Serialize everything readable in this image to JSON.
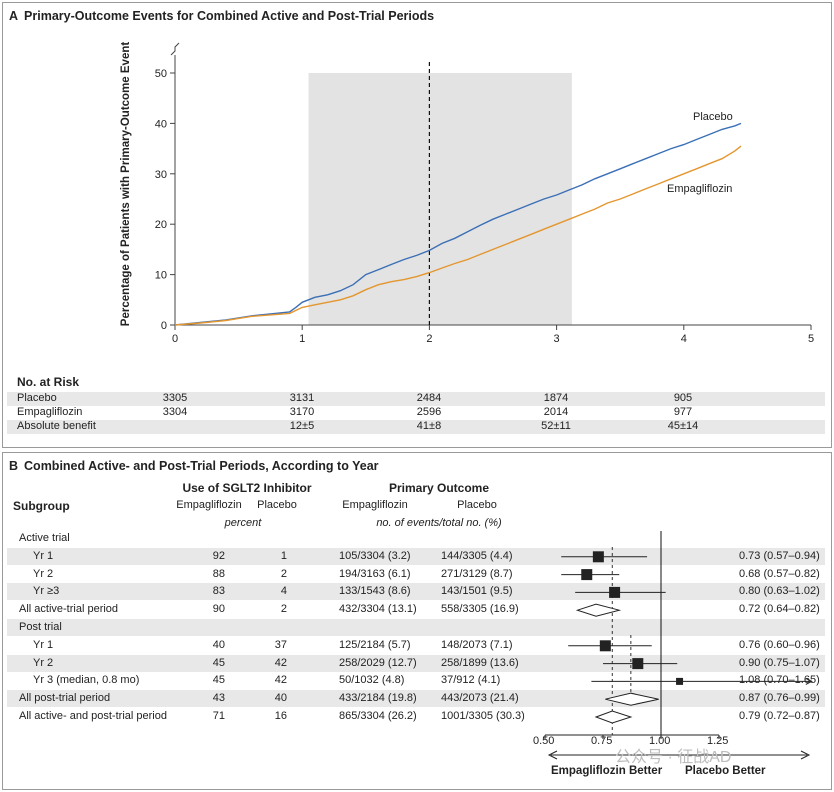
{
  "panel_a": {
    "letter": "A",
    "title": "Primary-Outcome Events for Combined Active and Post-Trial Periods",
    "risk_title": "No. at Risk",
    "risk_rows": [
      {
        "label": "Placebo",
        "values": [
          "3305",
          "3131",
          "2484",
          "1874",
          "905"
        ],
        "shaded": true
      },
      {
        "label": "Empagliflozin",
        "values": [
          "3304",
          "3170",
          "2596",
          "2014",
          "977"
        ],
        "shaded": false
      },
      {
        "label": "Absolute benefit",
        "values": [
          "",
          "12±5",
          "41±8",
          "52±11",
          "45±14"
        ],
        "shaded": true
      }
    ]
  },
  "panel_b": {
    "letter": "B",
    "title": "Combined Active- and Post-Trial Periods, According to Year",
    "head_subgroup": "Subgroup",
    "head_sglt2": "Use of SGLT2 Inhibitor",
    "head_outcome": "Primary Outcome",
    "head_empa": "Empagliflozin",
    "head_placebo": "Placebo",
    "head_percent": "percent",
    "head_events": "no. of events/total no. (%)",
    "rows": [
      {
        "label": "Active trial",
        "indent": false,
        "shaded": false,
        "empa_pct": "",
        "plac_pct": "",
        "empa_ev": "",
        "plac_ev": "",
        "ci_text": "",
        "hr": null,
        "lo": null,
        "hi": null,
        "shape": "none"
      },
      {
        "label": "Yr 1",
        "indent": true,
        "shaded": true,
        "empa_pct": "92",
        "plac_pct": "1",
        "empa_ev": "105/3304 (3.2)",
        "plac_ev": "144/3305 (4.4)",
        "ci_text": "0.73 (0.57–0.94)",
        "hr": 0.73,
        "lo": 0.57,
        "hi": 0.94,
        "shape": "square"
      },
      {
        "label": "Yr 2",
        "indent": true,
        "shaded": false,
        "empa_pct": "88",
        "plac_pct": "2",
        "empa_ev": "194/3163 (6.1)",
        "plac_ev": "271/3129 (8.7)",
        "ci_text": "0.68 (0.57–0.82)",
        "hr": 0.68,
        "lo": 0.57,
        "hi": 0.82,
        "shape": "square"
      },
      {
        "label": "Yr ≥3",
        "indent": true,
        "shaded": true,
        "empa_pct": "83",
        "plac_pct": "4",
        "empa_ev": "133/1543 (8.6)",
        "plac_ev": "143/1501 (9.5)",
        "ci_text": "0.80 (0.63–1.02)",
        "hr": 0.8,
        "lo": 0.63,
        "hi": 1.02,
        "shape": "square"
      },
      {
        "label": "All active-trial period",
        "indent": false,
        "shaded": false,
        "empa_pct": "90",
        "plac_pct": "2",
        "empa_ev": "432/3304 (13.1)",
        "plac_ev": "558/3305 (16.9)",
        "ci_text": "0.72 (0.64–0.82)",
        "hr": 0.72,
        "lo": 0.64,
        "hi": 0.82,
        "shape": "diamond"
      },
      {
        "label": "Post trial",
        "indent": false,
        "shaded": true,
        "empa_pct": "",
        "plac_pct": "",
        "empa_ev": "",
        "plac_ev": "",
        "ci_text": "",
        "hr": null,
        "lo": null,
        "hi": null,
        "shape": "none"
      },
      {
        "label": "Yr 1",
        "indent": true,
        "shaded": false,
        "empa_pct": "40",
        "plac_pct": "37",
        "empa_ev": "125/2184 (5.7)",
        "plac_ev": "148/2073 (7.1)",
        "ci_text": "0.76 (0.60–0.96)",
        "hr": 0.76,
        "lo": 0.6,
        "hi": 0.96,
        "shape": "square"
      },
      {
        "label": "Yr 2",
        "indent": true,
        "shaded": true,
        "empa_pct": "45",
        "plac_pct": "42",
        "empa_ev": "258/2029 (12.7)",
        "plac_ev": "258/1899 (13.6)",
        "ci_text": "0.90 (0.75–1.07)",
        "hr": 0.9,
        "lo": 0.75,
        "hi": 1.07,
        "shape": "square"
      },
      {
        "label": "Yr 3 (median, 0.8 mo)",
        "indent": true,
        "shaded": false,
        "empa_pct": "45",
        "plac_pct": "42",
        "empa_ev": "50/1032 (4.8)",
        "plac_ev": "37/912 (4.1)",
        "ci_text": "1.08 (0.70–1.65)",
        "hr": 1.08,
        "lo": 0.7,
        "hi": 1.65,
        "shape": "square-small"
      },
      {
        "label": "All post-trial period",
        "indent": false,
        "shaded": true,
        "empa_pct": "43",
        "plac_pct": "40",
        "empa_ev": "433/2184 (19.8)",
        "plac_ev": "443/2073 (21.4)",
        "ci_text": "0.87 (0.76–0.99)",
        "hr": 0.87,
        "lo": 0.76,
        "hi": 0.99,
        "shape": "diamond"
      },
      {
        "label": "All active- and post-trial period",
        "indent": false,
        "shaded": false,
        "empa_pct": "71",
        "plac_pct": "16",
        "empa_ev": "865/3304 (26.2)",
        "plac_ev": "1001/3305 (30.3)",
        "ci_text": "0.79 (0.72–0.87)",
        "hr": 0.79,
        "lo": 0.72,
        "hi": 0.87,
        "shape": "diamond"
      }
    ],
    "forest_ticks": [
      "0.50",
      "0.75",
      "1.00",
      "1.25"
    ],
    "left_better": "Empagliflozin Better",
    "right_better": "Placebo Better",
    "watermark": "公众号 · 征战AD"
  },
  "chart_data": [
    {
      "type": "line",
      "title": "Primary-Outcome Events for Combined Active and Post-Trial Periods",
      "ylabel": "Percentage of Patients with Primary-Outcome Event",
      "xlabel": "",
      "xlim": [
        0,
        5
      ],
      "ylim": [
        0,
        50
      ],
      "xticks": [
        "0",
        "1",
        "2",
        "3",
        "4",
        "5"
      ],
      "yticks": [
        "0",
        "10",
        "20",
        "30",
        "40",
        "50"
      ],
      "shaded_x_range": [
        1.05,
        3.12
      ],
      "reference_x": 2.0,
      "colors": {
        "Placebo": "#3b6fb6",
        "Empagliflozin": "#e4962f"
      },
      "series": [
        {
          "name": "Placebo",
          "x": [
            0,
            0.2,
            0.4,
            0.5,
            0.6,
            0.75,
            0.9,
            0.95,
            1.0,
            1.1,
            1.2,
            1.3,
            1.4,
            1.5,
            1.6,
            1.7,
            1.8,
            1.9,
            2.0,
            2.1,
            2.2,
            2.3,
            2.4,
            2.5,
            2.6,
            2.7,
            2.8,
            2.9,
            3.0,
            3.1,
            3.2,
            3.3,
            3.4,
            3.5,
            3.6,
            3.7,
            3.8,
            3.9,
            4.0,
            4.1,
            4.2,
            4.3,
            4.4,
            4.45
          ],
          "y": [
            0,
            0.5,
            1.0,
            1.4,
            1.8,
            2.2,
            2.6,
            3.5,
            4.5,
            5.5,
            6.0,
            6.8,
            8.0,
            10.0,
            11.0,
            12.0,
            13.0,
            13.8,
            14.8,
            16.2,
            17.2,
            18.5,
            19.8,
            21.0,
            22.0,
            23.0,
            24.0,
            25.0,
            25.8,
            26.8,
            27.8,
            29.0,
            30.0,
            31.0,
            32.0,
            33.0,
            34.0,
            35.0,
            35.8,
            36.8,
            37.8,
            38.8,
            39.5,
            40.0
          ]
        },
        {
          "name": "Empagliflozin",
          "x": [
            0,
            0.2,
            0.4,
            0.5,
            0.6,
            0.75,
            0.9,
            1.0,
            1.1,
            1.2,
            1.3,
            1.4,
            1.5,
            1.6,
            1.7,
            1.8,
            1.9,
            2.0,
            2.1,
            2.2,
            2.3,
            2.4,
            2.5,
            2.6,
            2.7,
            2.8,
            2.9,
            3.0,
            3.1,
            3.2,
            3.3,
            3.4,
            3.5,
            3.6,
            3.7,
            3.8,
            3.9,
            4.0,
            4.1,
            4.2,
            4.3,
            4.4,
            4.45
          ],
          "y": [
            0,
            0.4,
            0.9,
            1.3,
            1.7,
            2.0,
            2.3,
            3.5,
            4.0,
            4.5,
            5.0,
            5.8,
            7.0,
            8.0,
            8.6,
            9.0,
            9.6,
            10.4,
            11.3,
            12.2,
            13.0,
            14.0,
            15.0,
            16.0,
            17.0,
            18.0,
            19.0,
            20.0,
            21.0,
            22.0,
            23.0,
            24.2,
            25.0,
            26.0,
            27.0,
            28.0,
            29.0,
            30.0,
            31.0,
            32.0,
            33.0,
            34.5,
            35.5
          ]
        }
      ]
    },
    {
      "type": "scatter",
      "title": "Combined Active- and Post-Trial Periods, According to Year",
      "xlim": [
        0.5,
        1.25
      ],
      "xticks": [
        "0.50",
        "0.75",
        "1.00",
        "1.25"
      ],
      "reference_x": 1.0,
      "overall_hr": 0.79,
      "note": "forest plot of hazard ratios with 95% CI (values in panel_b.rows)"
    }
  ]
}
